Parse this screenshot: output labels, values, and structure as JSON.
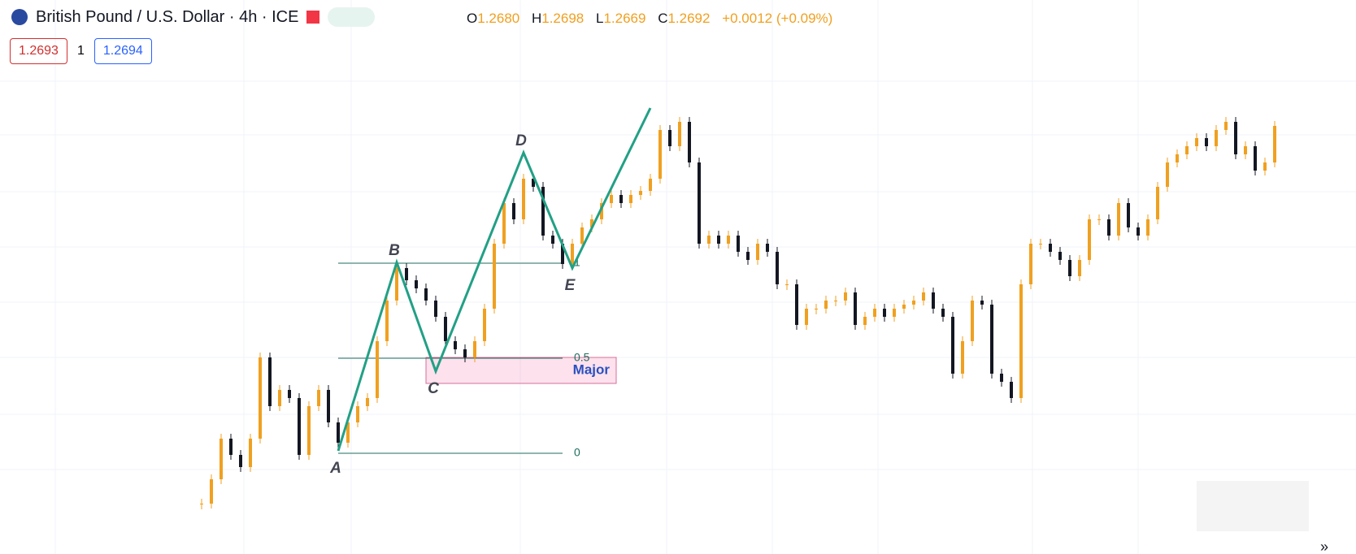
{
  "chart_data": {
    "type": "candlestick",
    "title": "British Pound / U.S. Dollar · 4h · ICE",
    "ohlc": {
      "open_label": "O",
      "open": "1.2680",
      "high_label": "H",
      "high": "1.2698",
      "low_label": "L",
      "low": "1.2669",
      "close_label": "C",
      "close": "1.2692",
      "change": "+0.0012 (+0.09%)"
    },
    "quote": {
      "bid": "1.2693",
      "spread": "1",
      "ask": "1.2694"
    },
    "up_color": "#f0a020",
    "down_color": "#131722",
    "ylim": [
      1.2207,
      1.2847
    ],
    "values": [
      1.2227,
      1.2257,
      1.2307,
      1.2287,
      1.2272,
      1.2307,
      1.2407,
      1.2347,
      1.2367,
      1.2357,
      1.2287,
      1.2347,
      1.2367,
      1.2327,
      1.2302,
      1.2327,
      1.2347,
      1.2357,
      1.2427,
      1.2477,
      1.2517,
      1.2502,
      1.2492,
      1.2477,
      1.2457,
      1.2427,
      1.2417,
      1.2407,
      1.2427,
      1.2467,
      1.2547,
      1.2597,
      1.2577,
      1.2627,
      1.2617,
      1.2557,
      1.2547,
      1.2522,
      1.2547,
      1.2567,
      1.2577,
      1.2597,
      1.2607,
      1.2597,
      1.2607,
      1.2612,
      1.2627,
      1.2687,
      1.2667,
      1.2697,
      1.2647,
      1.2547,
      1.2557,
      1.2547,
      1.2557,
      1.2537,
      1.2527,
      1.2547,
      1.2537,
      1.2497,
      1.2497,
      1.2447,
      1.2467,
      1.2467,
      1.2477,
      1.2477,
      1.2487,
      1.2447,
      1.2457,
      1.2467,
      1.2457,
      1.2467,
      1.2472,
      1.2477,
      1.2487,
      1.2467,
      1.2457,
      1.2387,
      1.2427,
      1.2477,
      1.2472,
      1.2387,
      1.2377,
      1.2357,
      1.2497,
      1.2547,
      1.2547,
      1.2537,
      1.2527,
      1.2507,
      1.2527,
      1.2577,
      1.2577,
      1.2557,
      1.2597,
      1.2567,
      1.2557,
      1.2577,
      1.2617,
      1.2647,
      1.2657,
      1.2667,
      1.2677,
      1.2667,
      1.2687,
      1.2697,
      1.2657,
      1.2667,
      1.2637,
      1.2647,
      1.2692
    ],
    "zigzag": {
      "color": "#22a085",
      "labels": [
        "A",
        "B",
        "C",
        "D",
        "E",
        null
      ],
      "index": [
        14,
        20,
        24,
        33,
        38,
        46
      ],
      "values": [
        1.2292,
        1.2524,
        1.239,
        1.2659,
        1.2517,
        1.2714
      ]
    },
    "fib": {
      "levels": [
        0,
        0.5,
        1
      ],
      "start": 1.2289,
      "end": 1.2523,
      "index": [
        14,
        37
      ],
      "color": "#1e6e5e"
    },
    "zone": {
      "label": "Major",
      "ylim": [
        1.2375,
        1.2407
      ],
      "index": [
        23,
        42.5
      ]
    }
  }
}
